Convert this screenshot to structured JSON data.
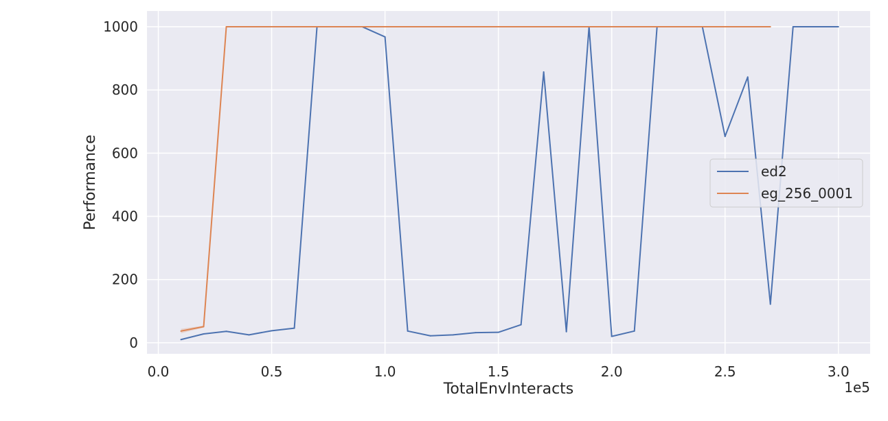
{
  "chart_data": {
    "type": "line",
    "xlabel": "TotalEnvInteracts",
    "ylabel": "Performance",
    "x_offset_label": "1e5",
    "xlim": [
      -0.05,
      3.14
    ],
    "ylim": [
      -35,
      1050
    ],
    "xticks": [
      0.0,
      0.5,
      1.0,
      1.5,
      2.0,
      2.5,
      3.0
    ],
    "xtick_labels": [
      "0.0",
      "0.5",
      "1.0",
      "1.5",
      "2.0",
      "2.5",
      "3.0"
    ],
    "yticks": [
      0,
      200,
      400,
      600,
      800,
      1000
    ],
    "ytick_labels": [
      "0",
      "200",
      "400",
      "600",
      "800",
      "1000"
    ],
    "grid": true,
    "background": "#eaeaf2",
    "legend_position": "center-right",
    "series": [
      {
        "name": "ed2",
        "color": "#4c72b0",
        "x": [
          0.1,
          0.2,
          0.3,
          0.4,
          0.5,
          0.6,
          0.7,
          0.8,
          0.9,
          1.0,
          1.1,
          1.2,
          1.3,
          1.4,
          1.5,
          1.6,
          1.7,
          1.8,
          1.9,
          2.0,
          2.1,
          2.2,
          2.3,
          2.4,
          2.5,
          2.6,
          2.7,
          2.8,
          2.9,
          3.0
        ],
        "values": [
          10,
          28,
          36,
          25,
          38,
          46,
          1000,
          1000,
          1000,
          968,
          37,
          22,
          25,
          32,
          33,
          57,
          857,
          35,
          1000,
          20,
          37,
          1000,
          1000,
          1000,
          653,
          841,
          122,
          1000,
          1000,
          1000
        ]
      },
      {
        "name": "eg_256_0001",
        "color": "#dd8452",
        "x": [
          0.1,
          0.2,
          0.3,
          0.4,
          0.5,
          0.6,
          0.7,
          0.8,
          0.9,
          1.0,
          1.1,
          1.2,
          1.3,
          1.4,
          1.5,
          1.6,
          1.7,
          1.8,
          1.9,
          2.0,
          2.1,
          2.2,
          2.3,
          2.4,
          2.5,
          2.6,
          2.7
        ],
        "values": [
          37,
          51,
          1000,
          1000,
          1000,
          1000,
          1000,
          1000,
          1000,
          1000,
          1000,
          1000,
          1000,
          1000,
          1000,
          1000,
          1000,
          1000,
          1000,
          1000,
          1000,
          1000,
          1000,
          1000,
          1000,
          1000,
          1000
        ],
        "band_low": [
          30,
          48,
          1000,
          1000,
          1000,
          1000,
          1000,
          1000,
          1000,
          1000,
          1000,
          1000,
          1000,
          1000,
          1000,
          1000,
          1000,
          1000,
          1000,
          1000,
          1000,
          1000,
          1000,
          1000,
          1000,
          1000,
          1000
        ],
        "band_high": [
          44,
          54,
          1000,
          1000,
          1000,
          1000,
          1000,
          1000,
          1000,
          1000,
          1000,
          1000,
          1000,
          1000,
          1000,
          1000,
          1000,
          1000,
          1000,
          1000,
          1000,
          1000,
          1000,
          1000,
          1000,
          1000,
          1000
        ]
      }
    ]
  }
}
